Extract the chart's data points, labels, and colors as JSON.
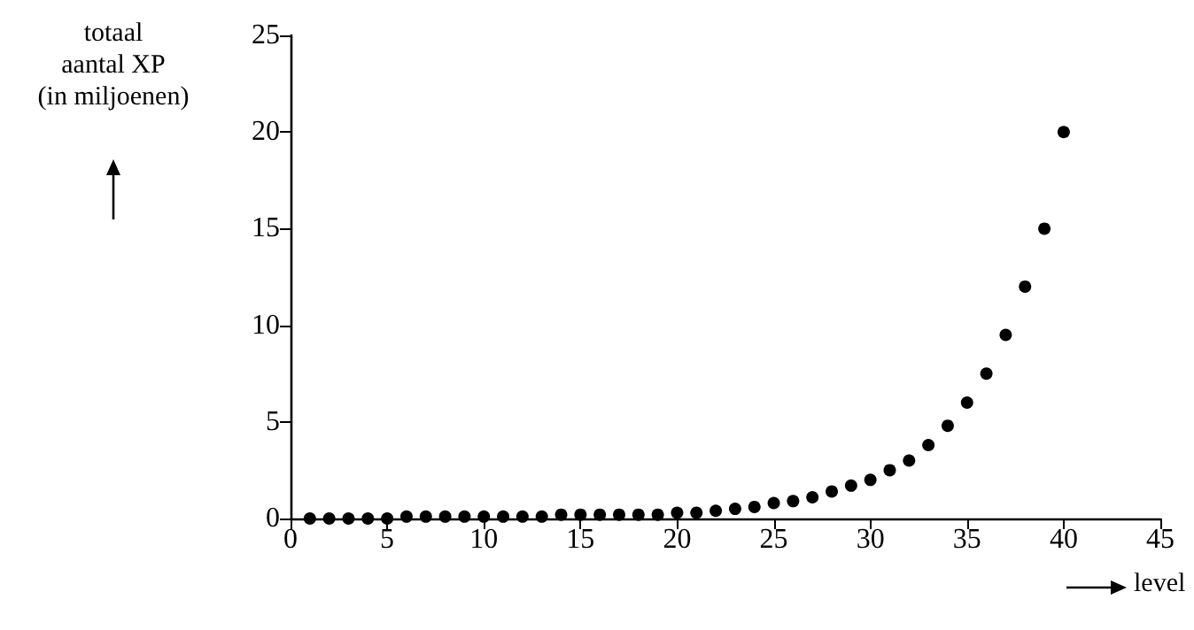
{
  "chart_data": {
    "type": "scatter",
    "xlabel": "level",
    "ylabel": "totaal\naantal XP\n(in miljoenen)",
    "x": [
      1,
      2,
      3,
      4,
      5,
      6,
      7,
      8,
      9,
      10,
      11,
      12,
      13,
      14,
      15,
      16,
      17,
      18,
      19,
      20,
      21,
      22,
      23,
      24,
      25,
      26,
      27,
      28,
      29,
      30,
      31,
      32,
      33,
      34,
      35,
      36,
      37,
      38,
      39,
      40
    ],
    "series": [
      {
        "color": "#000000",
        "values": [
          0,
          0,
          0,
          0,
          0,
          0.1,
          0.1,
          0.1,
          0.1,
          0.1,
          0.1,
          0.1,
          0.1,
          0.2,
          0.2,
          0.2,
          0.2,
          0.2,
          0.2,
          0.3,
          0.3,
          0.4,
          0.5,
          0.6,
          0.8,
          0.9,
          1.1,
          1.4,
          1.7,
          2.0,
          2.5,
          3.0,
          3.8,
          4.8,
          6.0,
          7.5,
          9.5,
          12.0,
          15.0,
          20.0
        ]
      }
    ],
    "xlim": [
      0,
      45
    ],
    "xticks": [
      0,
      5,
      10,
      15,
      20,
      25,
      30,
      35,
      40,
      45
    ],
    "ylim": [
      0,
      25
    ],
    "yticks": [
      0,
      5,
      10,
      15,
      20,
      25
    ],
    "grid": false,
    "marker": "circle"
  }
}
